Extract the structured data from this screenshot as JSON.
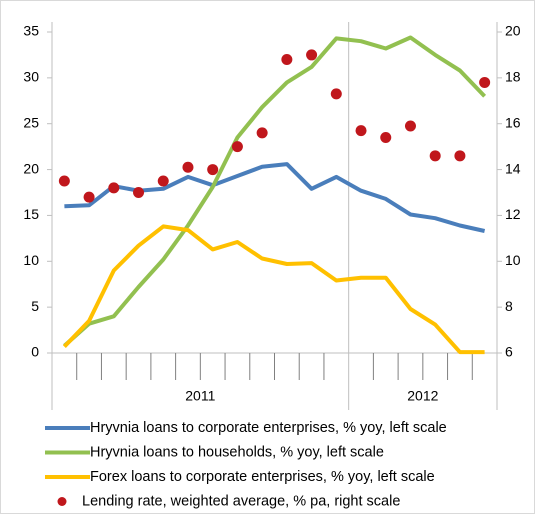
{
  "chart_data": {
    "type": "line",
    "categories": [
      null,
      null,
      null,
      null,
      null,
      null,
      null,
      null,
      null,
      null,
      null,
      null,
      null,
      null,
      null,
      null,
      null,
      null
    ],
    "groups": [
      {
        "label": "2011",
        "count": 12
      },
      {
        "label": "2012",
        "count": 6
      }
    ],
    "series": [
      {
        "name": "Hryvnia loans to corporate enterprises, % yoy, left scale",
        "color": "#4a7ebb",
        "values": [
          16.0,
          16.1,
          18.2,
          17.7,
          17.9,
          19.2,
          18.3,
          19.3,
          20.3,
          20.6,
          17.9,
          19.2,
          17.7,
          16.8,
          15.1,
          14.7,
          13.9,
          13.3
        ]
      },
      {
        "name": "Hryvnia loans to households, % yoy, left scale",
        "color": "#92c050",
        "values": [
          0.8,
          3.2,
          4.0,
          7.2,
          10.2,
          13.9,
          18.1,
          23.5,
          26.8,
          29.5,
          31.2,
          34.3,
          34.0,
          33.2,
          34.4,
          32.5,
          30.8,
          28.0
        ]
      },
      {
        "name": "Forex loans to corporate enterprises, % yoy, left scale",
        "color": "#ffc000",
        "values": [
          0.7,
          3.5,
          9.0,
          11.7,
          13.8,
          13.4,
          11.3,
          12.1,
          10.3,
          9.7,
          9.8,
          7.9,
          8.2,
          8.2,
          4.8,
          3.1,
          0.1,
          0.1
        ]
      },
      {
        "name": "Lending rate, weighted average, % pa, right scale",
        "color": "#c0171c",
        "type": "scatter",
        "axis": "y2",
        "values": [
          13.5,
          12.8,
          13.2,
          13.0,
          13.5,
          14.1,
          14.0,
          15.0,
          15.6,
          18.8,
          19.0,
          17.3,
          15.7,
          15.4,
          15.9,
          14.6,
          14.6,
          17.8
        ]
      }
    ],
    "ylim": [
      0,
      35
    ],
    "yticks": [
      0,
      5,
      10,
      15,
      20,
      25,
      30,
      35
    ],
    "y2lim": [
      6,
      20
    ],
    "y2ticks": [
      6,
      8,
      10,
      12,
      14,
      16,
      18,
      20
    ]
  }
}
